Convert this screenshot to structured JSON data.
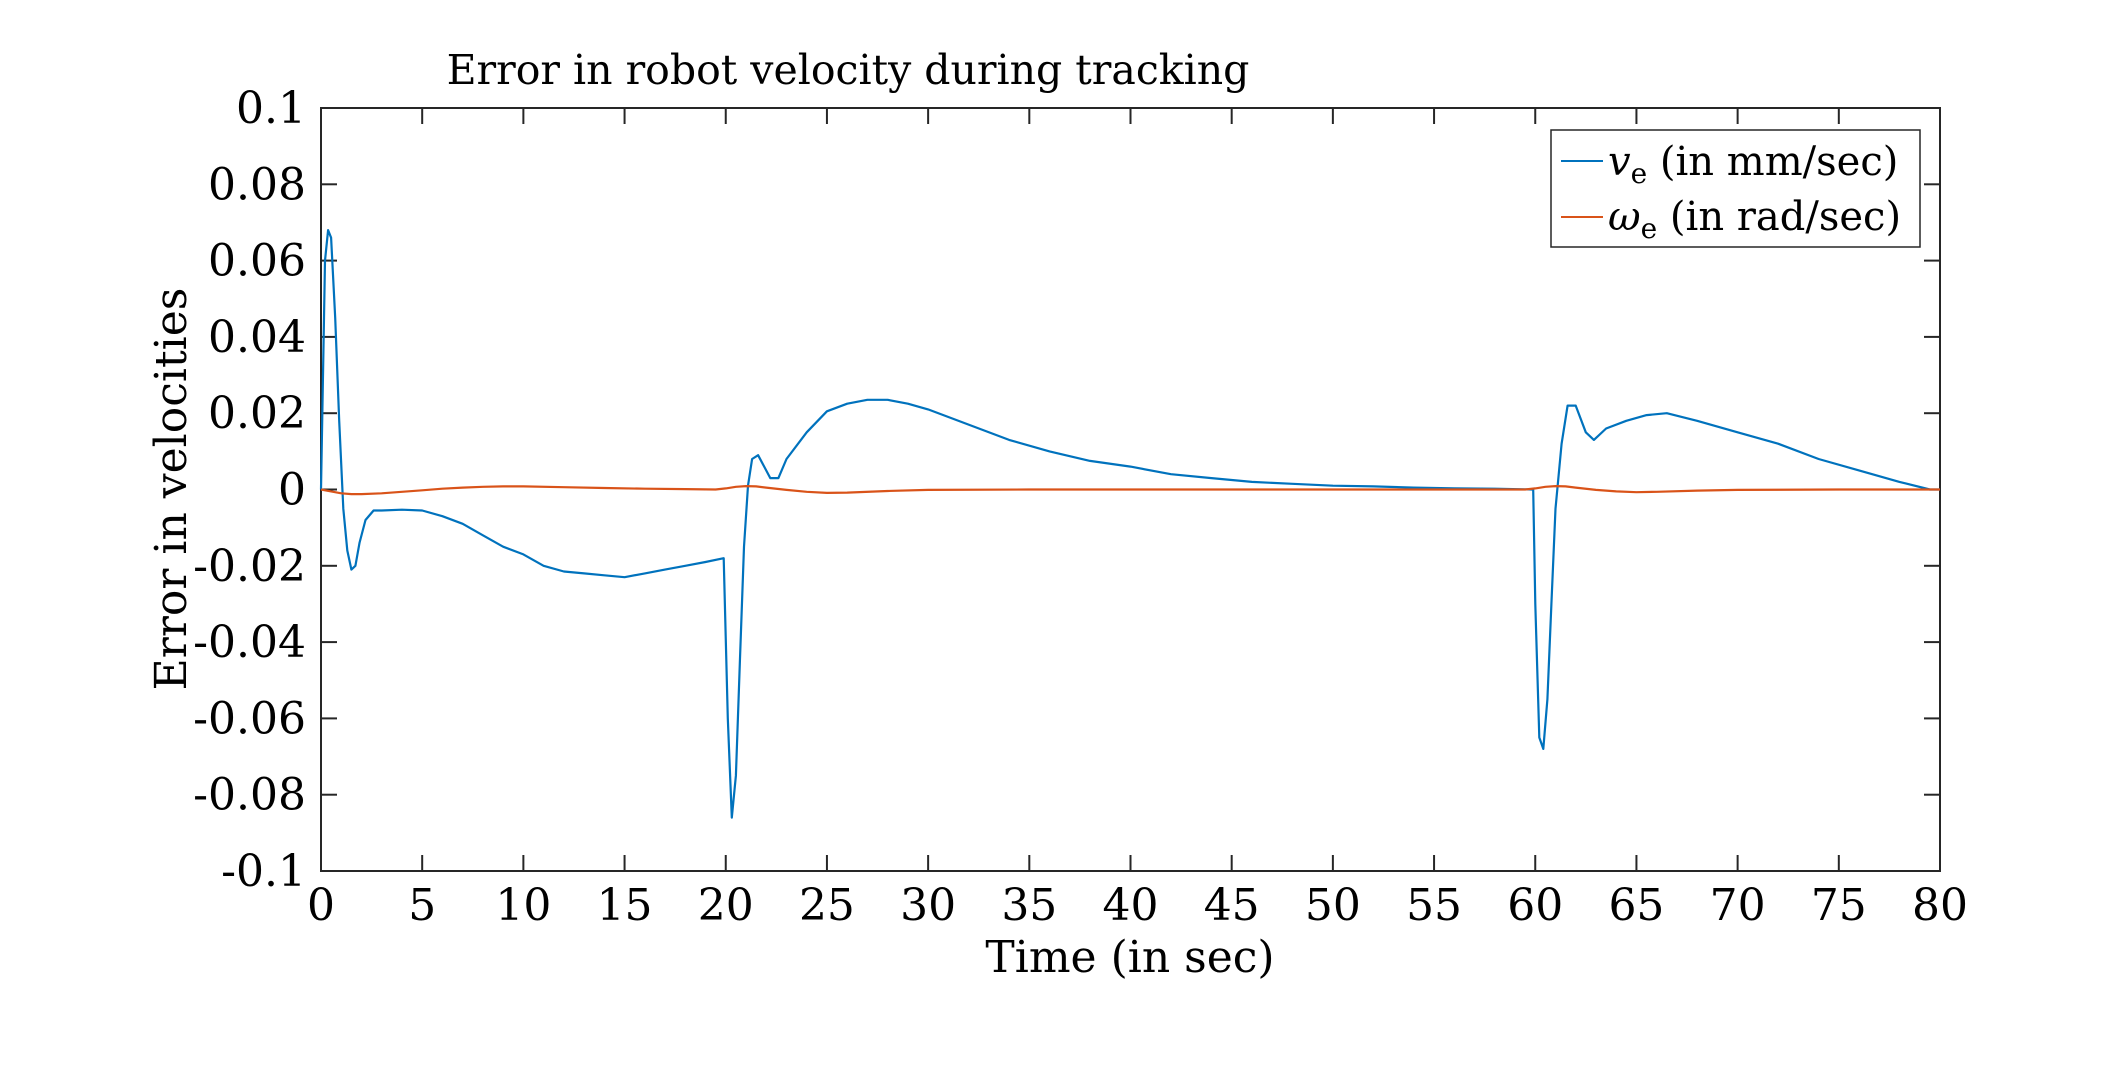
{
  "chart_data": {
    "type": "line",
    "title": "Error in robot velocity during tracking",
    "xlabel": "Time (in sec)",
    "ylabel": "Error in velocities",
    "xlim": [
      0,
      80
    ],
    "ylim": [
      -0.1,
      0.1
    ],
    "x_ticks": [
      0,
      5,
      10,
      15,
      20,
      25,
      30,
      35,
      40,
      45,
      50,
      55,
      60,
      65,
      70,
      75,
      80
    ],
    "x_tick_labels": [
      "0",
      "5",
      "10",
      "15",
      "20",
      "25",
      "30",
      "35",
      "40",
      "45",
      "50",
      "55",
      "60",
      "65",
      "70",
      "75",
      "80"
    ],
    "y_ticks": [
      0.1,
      0.08,
      0.06,
      0.04,
      0.02,
      0,
      -0.02,
      -0.04,
      -0.06,
      -0.08,
      -0.1
    ],
    "y_tick_labels": [
      "0.1",
      "0.08",
      "0.06",
      "0.04",
      "0.02",
      "0",
      "-0.02",
      "-0.04",
      "-0.06",
      "-0.08",
      "-0.1"
    ],
    "grid": false,
    "legend_position": "top-right",
    "series": [
      {
        "name": "v_e (in mm/sec)",
        "legend_symbol": "v",
        "legend_subscript": "e",
        "legend_text": " (in mm/sec)",
        "color": "#0072BD",
        "x": [
          0,
          0.1,
          0.2,
          0.35,
          0.5,
          0.7,
          0.9,
          1.1,
          1.3,
          1.5,
          1.7,
          1.9,
          2.2,
          2.6,
          3,
          4,
          5,
          6,
          7,
          8,
          9,
          10,
          11,
          12,
          13,
          14,
          15,
          16,
          17,
          18,
          19,
          19.9,
          20.1,
          20.3,
          20.5,
          20.7,
          20.9,
          21.1,
          21.3,
          21.6,
          21.9,
          22.2,
          22.6,
          23,
          24,
          25,
          26,
          27,
          28,
          29,
          30,
          32,
          34,
          36,
          38,
          40,
          42,
          44,
          46,
          48,
          50,
          52,
          54,
          56,
          58,
          59.9,
          60.0,
          60.2,
          60.4,
          60.6,
          60.8,
          61.0,
          61.3,
          61.6,
          62,
          62.5,
          62.9,
          63.5,
          64.5,
          65.5,
          66.5,
          68,
          70,
          72,
          74,
          76,
          78,
          79.5,
          80
        ],
        "y": [
          0,
          0.03,
          0.06,
          0.068,
          0.066,
          0.045,
          0.018,
          -0.005,
          -0.016,
          -0.021,
          -0.02,
          -0.014,
          -0.008,
          -0.0055,
          -0.0055,
          -0.0053,
          -0.0055,
          -0.007,
          -0.009,
          -0.012,
          -0.015,
          -0.017,
          -0.02,
          -0.0215,
          -0.022,
          -0.0225,
          -0.023,
          -0.022,
          -0.021,
          -0.02,
          -0.019,
          -0.018,
          -0.06,
          -0.086,
          -0.075,
          -0.045,
          -0.015,
          0.001,
          0.008,
          0.009,
          0.006,
          0.003,
          0.003,
          0.008,
          0.015,
          0.0205,
          0.0225,
          0.0235,
          0.0235,
          0.0225,
          0.021,
          0.017,
          0.013,
          0.01,
          0.0075,
          0.006,
          0.004,
          0.003,
          0.002,
          0.0015,
          0.001,
          0.0008,
          0.0005,
          0.0003,
          0.0002,
          0,
          -0.03,
          -0.065,
          -0.068,
          -0.055,
          -0.03,
          -0.005,
          0.012,
          0.022,
          0.022,
          0.015,
          0.013,
          0.016,
          0.018,
          0.0195,
          0.02,
          0.018,
          0.015,
          0.012,
          0.008,
          0.005,
          0.002,
          0,
          0
        ]
      },
      {
        "name": "ω_e (in rad/sec)",
        "legend_symbol": "ω",
        "legend_subscript": "e",
        "legend_text": " (in rad/sec)",
        "color": "#D95319",
        "x": [
          0,
          0.5,
          1,
          1.5,
          2,
          3,
          4,
          5,
          6,
          7,
          8,
          9,
          10,
          12,
          14,
          16,
          18,
          19.5,
          20,
          20.5,
          21,
          21.5,
          22,
          23,
          24,
          25,
          26,
          28,
          30,
          35,
          40,
          45,
          50,
          55,
          59.5,
          60,
          60.5,
          61,
          61.5,
          62,
          63,
          64,
          65,
          66,
          68,
          70,
          75,
          80
        ],
        "y": [
          0,
          -0.0005,
          -0.001,
          -0.0012,
          -0.0012,
          -0.001,
          -0.0006,
          -0.0002,
          0.0002,
          0.0005,
          0.0007,
          0.0008,
          0.0008,
          0.0006,
          0.0004,
          0.0002,
          0.0001,
          0,
          0.0003,
          0.0007,
          0.0009,
          0.0008,
          0.0005,
          -0.0001,
          -0.0006,
          -0.0009,
          -0.0008,
          -0.0004,
          -0.0001,
          0,
          0,
          0,
          0,
          0,
          0,
          0.0003,
          0.0007,
          0.0009,
          0.0008,
          0.0005,
          -0.0001,
          -0.0005,
          -0.0007,
          -0.0006,
          -0.0003,
          -0.0001,
          0,
          0
        ]
      }
    ]
  }
}
